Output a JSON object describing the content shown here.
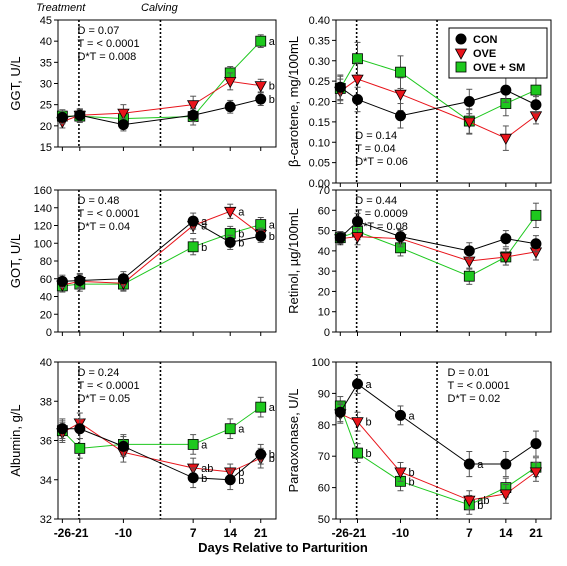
{
  "chart_data": {
    "type": "line",
    "x_label": "Days Relative to Parturition",
    "x_ticks": [
      "-26",
      "-21",
      "-10",
      "7",
      "14",
      "21"
    ],
    "header_labels": [
      "Treatment",
      "Calving"
    ],
    "series_names": [
      "CON",
      "OVE",
      "OVE + SM"
    ],
    "series_colors": {
      "CON": "#000000",
      "OVE": "#e8141b",
      "OVE + SM": "#1ec81e"
    },
    "legend_position": "top-right",
    "panels": [
      {
        "ylabel": "GGT, U/L",
        "ylim": [
          15,
          45
        ],
        "yticks": [
          15,
          20,
          25,
          30,
          35,
          40,
          45
        ],
        "stats": [
          "D = 0.07",
          "T = < 0.0001",
          "D*T = 0.008"
        ],
        "series": [
          {
            "name": "CON",
            "values": [
              22.0,
              22.5,
              20.3,
              22.5,
              24.5,
              26.3
            ],
            "err": [
              1.5,
              1.5,
              1.5,
              1.5,
              1.5,
              1.5
            ]
          },
          {
            "name": "OVE",
            "values": [
              21.0,
              22.5,
              23.0,
              25.0,
              30.5,
              29.5
            ],
            "err": [
              1.5,
              1.5,
              2.0,
              2.0,
              2.0,
              1.5
            ]
          },
          {
            "name": "OVE + SM",
            "values": [
              22.3,
              22.3,
              21.7,
              22.2,
              32.5,
              40.0
            ],
            "err": [
              1.5,
              1.5,
              1.5,
              2.0,
              1.5,
              1.5
            ]
          }
        ],
        "sig_labels": [
          {
            "t": "a",
            "x": "21",
            "y": 40.0
          },
          {
            "t": "b",
            "x": "21",
            "y": 29.5
          },
          {
            "t": "b",
            "x": "21",
            "y": 26.3
          }
        ]
      },
      {
        "ylabel": "β-carotene, mg/100mL",
        "ylim": [
          0.0,
          0.4
        ],
        "yticks": [
          0.0,
          0.05,
          0.1,
          0.15,
          0.2,
          0.25,
          0.3,
          0.35,
          0.4
        ],
        "stats": [
          "D = 0.14",
          "T = 0.04",
          "D*T = 0.06"
        ],
        "series": [
          {
            "name": "CON",
            "values": [
              0.235,
              0.205,
              0.165,
              0.2,
              0.228,
              0.192
            ],
            "err": [
              0.03,
              0.03,
              0.03,
              0.03,
              0.03,
              0.02
            ]
          },
          {
            "name": "OVE",
            "values": [
              0.225,
              0.255,
              0.218,
              0.15,
              0.11,
              0.165
            ],
            "err": [
              0.03,
              0.04,
              0.04,
              0.03,
              0.03,
              0.02
            ]
          },
          {
            "name": "OVE + SM",
            "values": [
              0.232,
              0.305,
              0.272,
              0.152,
              0.195,
              0.228
            ],
            "err": [
              0.03,
              0.04,
              0.04,
              0.03,
              0.03,
              0.03
            ]
          }
        ]
      },
      {
        "ylabel": "GOT, U/L",
        "ylim": [
          0,
          160
        ],
        "yticks": [
          0,
          20,
          40,
          60,
          80,
          100,
          120,
          140,
          160
        ],
        "stats": [
          "D = 0.48",
          "T = < 0.0001",
          "D*T = 0.04"
        ],
        "series": [
          {
            "name": "CON",
            "values": [
              57,
              58,
              60,
              125,
              101,
              108
            ],
            "err": [
              7,
              8,
              8,
              9,
              8,
              7
            ]
          },
          {
            "name": "OVE",
            "values": [
              53,
              57,
              55,
              120,
              136,
              110
            ],
            "err": [
              7,
              8,
              8,
              9,
              8,
              7
            ]
          },
          {
            "name": "OVE + SM",
            "values": [
              52,
              54,
              54,
              96,
              111,
              121
            ],
            "err": [
              7,
              8,
              8,
              9,
              8,
              8
            ]
          }
        ],
        "sig_labels": [
          {
            "t": "a",
            "x": "7",
            "y": 125
          },
          {
            "t": "a",
            "x": "7",
            "y": 120
          },
          {
            "t": "b",
            "x": "7",
            "y": 96
          },
          {
            "t": "a",
            "x": "14",
            "y": 136
          },
          {
            "t": "b",
            "x": "14",
            "y": 111
          },
          {
            "t": "b",
            "x": "14",
            "y": 101
          },
          {
            "t": "a",
            "x": "21",
            "y": 121
          },
          {
            "t": "b",
            "x": "21",
            "y": 108
          }
        ]
      },
      {
        "ylabel": "Retinol, µg/100mL",
        "ylim": [
          0,
          70
        ],
        "yticks": [
          0,
          10,
          20,
          30,
          40,
          50,
          60,
          70
        ],
        "stats": [
          "D = 0.44",
          "T = 0.0009",
          "D*T = 0.08"
        ],
        "series": [
          {
            "name": "CON",
            "values": [
              46.5,
              54.5,
              47.0,
              40.0,
              46.0,
              43.5
            ],
            "err": [
              3,
              4,
              4,
              4,
              4,
              4
            ]
          },
          {
            "name": "OVE",
            "values": [
              46.0,
              47.0,
              46.0,
              35.0,
              37.0,
              39.5
            ],
            "err": [
              3,
              4,
              4,
              4,
              4,
              4
            ]
          },
          {
            "name": "OVE + SM",
            "values": [
              46.5,
              49.5,
              41.5,
              27.5,
              37.0,
              57.5
            ],
            "err": [
              3,
              4,
              4,
              4,
              4,
              6
            ]
          }
        ]
      },
      {
        "ylabel": "Albumin, g/L",
        "ylim": [
          32,
          40
        ],
        "yticks": [
          32,
          34,
          36,
          38,
          40
        ],
        "stats": [
          "D = 0.24",
          "T = < 0.0001",
          "D*T = 0.05"
        ],
        "series": [
          {
            "name": "CON",
            "values": [
              36.6,
              36.6,
              35.7,
              34.1,
              34.0,
              35.3
            ],
            "err": [
              0.5,
              0.5,
              0.5,
              0.5,
              0.5,
              0.5
            ]
          },
          {
            "name": "OVE",
            "values": [
              36.4,
              36.9,
              35.4,
              34.6,
              34.4,
              35.1
            ],
            "err": [
              0.5,
              0.5,
              0.5,
              0.5,
              0.4,
              0.5
            ]
          },
          {
            "name": "OVE + SM",
            "values": [
              36.5,
              35.6,
              35.8,
              35.8,
              36.6,
              37.7
            ],
            "err": [
              0.5,
              0.5,
              0.5,
              0.5,
              0.5,
              0.5
            ]
          }
        ],
        "sig_labels": [
          {
            "t": "a",
            "x": "7",
            "y": 35.8
          },
          {
            "t": "ab",
            "x": "7",
            "y": 34.6
          },
          {
            "t": "b",
            "x": "7",
            "y": 34.1
          },
          {
            "t": "a",
            "x": "14",
            "y": 36.6
          },
          {
            "t": "b",
            "x": "14",
            "y": 34.4
          },
          {
            "t": "b",
            "x": "14",
            "y": 34.0
          },
          {
            "t": "a",
            "x": "21",
            "y": 37.7
          },
          {
            "t": "b",
            "x": "21",
            "y": 35.3
          },
          {
            "t": "b",
            "x": "21",
            "y": 35.1
          }
        ]
      },
      {
        "ylabel": "Paraoxonase, U/L",
        "ylim": [
          50,
          100
        ],
        "yticks": [
          50,
          60,
          70,
          80,
          90,
          100
        ],
        "stats": [
          "D = 0.01",
          "T = < 0.0001",
          "D*T = 0.02"
        ],
        "series": [
          {
            "name": "CON",
            "values": [
              84,
              93,
              83,
              67.5,
              67.5,
              74
            ],
            "err": [
              3,
              3,
              3,
              4,
              4,
              4
            ]
          },
          {
            "name": "OVE",
            "values": [
              83.5,
              81,
              65,
              56,
              58,
              65
            ],
            "err": [
              3,
              3,
              3,
              3,
              3,
              3
            ]
          },
          {
            "name": "OVE + SM",
            "values": [
              86,
              71,
              62,
              54.5,
              60,
              66.5
            ],
            "err": [
              3,
              3,
              3,
              3,
              3,
              3
            ]
          }
        ],
        "sig_labels": [
          {
            "t": "a",
            "x": "-21",
            "y": 93
          },
          {
            "t": "b",
            "x": "-21",
            "y": 81
          },
          {
            "t": "b",
            "x": "-21",
            "y": 71
          },
          {
            "t": "a",
            "x": "-10",
            "y": 83
          },
          {
            "t": "b",
            "x": "-10",
            "y": 65
          },
          {
            "t": "b",
            "x": "-10",
            "y": 62
          },
          {
            "t": "a",
            "x": "7",
            "y": 67.5
          },
          {
            "t": "ab",
            "x": "7",
            "y": 56
          },
          {
            "t": "b",
            "x": "7",
            "y": 54.5
          }
        ]
      }
    ]
  }
}
